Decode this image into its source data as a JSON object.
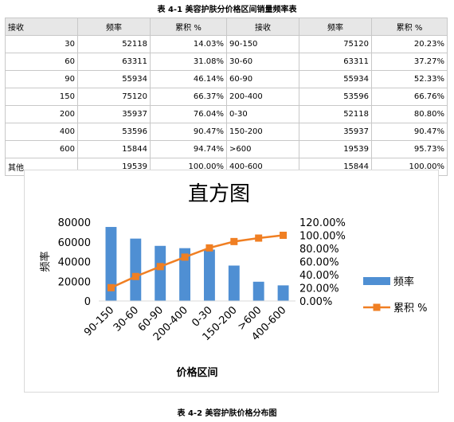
{
  "table": {
    "caption": "表 4-1 美容护肤分价格区间销量频率表",
    "headers": [
      "接收",
      "频率",
      "累积 %",
      "接收",
      "频率",
      "累积 %"
    ],
    "rows": [
      [
        "30",
        "52118",
        "14.03%",
        "90-150",
        "75120",
        "20.23%"
      ],
      [
        "60",
        "63311",
        "31.08%",
        "30-60",
        "63311",
        "37.27%"
      ],
      [
        "90",
        "55934",
        "46.14%",
        "60-90",
        "55934",
        "52.33%"
      ],
      [
        "150",
        "75120",
        "66.37%",
        "200-400",
        "53596",
        "66.76%"
      ],
      [
        "200",
        "35937",
        "76.04%",
        "0-30",
        "52118",
        "80.80%"
      ],
      [
        "400",
        "53596",
        "90.47%",
        "150-200",
        "35937",
        "90.47%"
      ],
      [
        "600",
        "15844",
        "94.74%",
        ">600",
        "19539",
        "95.73%"
      ],
      [
        "其他",
        "19539",
        "100.00%",
        "400-600",
        "15844",
        "100.00%"
      ]
    ]
  },
  "chart_data": {
    "type": "bar",
    "title": "直方图",
    "xlabel": "价格区间",
    "ylabel": "频率",
    "categories": [
      "90-150",
      "30-60",
      "60-90",
      "200-400",
      "0-30",
      "150-200",
      ">600",
      "400-600"
    ],
    "series": [
      {
        "name": "频率",
        "type": "bar",
        "axis": "left",
        "color": "#4f8fd3",
        "values": [
          75120,
          63311,
          55934,
          53596,
          52118,
          35937,
          19539,
          15844
        ]
      },
      {
        "name": "累积 %",
        "type": "line",
        "axis": "right",
        "color": "#f07f23",
        "values": [
          20.23,
          37.27,
          52.33,
          66.76,
          80.8,
          90.47,
          95.73,
          100.0
        ]
      }
    ],
    "ylim_left": [
      0,
      80000
    ],
    "yticks_left": [
      "0",
      "20000",
      "40000",
      "60000",
      "80000"
    ],
    "ylim_right": [
      0,
      120
    ],
    "yticks_right": [
      "0.00%",
      "20.00%",
      "40.00%",
      "60.00%",
      "80.00%",
      "100.00%",
      "120.00%"
    ],
    "grid": false,
    "legend": "right"
  },
  "chart_caption": "表 4-2 美容护肤价格分布图"
}
